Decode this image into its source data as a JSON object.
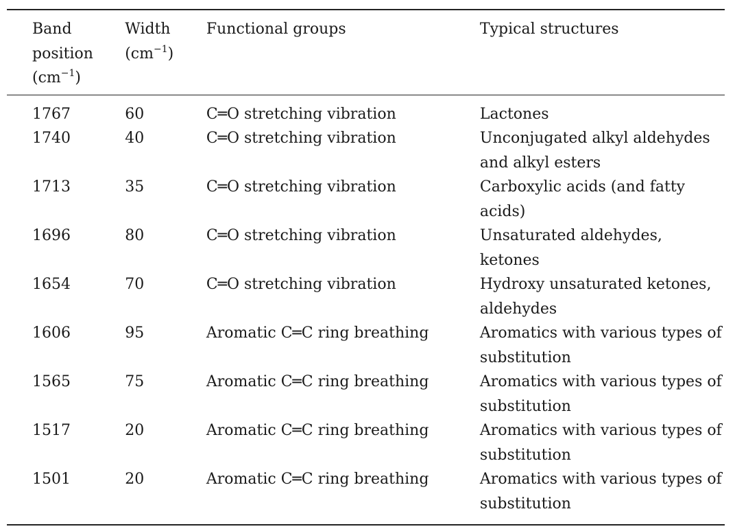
{
  "table": {
    "columns": [
      {
        "label": "Band position (cm",
        "sup": "−1",
        "close": ")"
      },
      {
        "label": "Width (cm",
        "sup": "−1",
        "close": ")"
      },
      {
        "label": "Functional groups"
      },
      {
        "label": "Typical structures"
      }
    ],
    "rows": [
      [
        1767,
        60,
        "C═O stretching vibration",
        "Lactones"
      ],
      [
        1740,
        40,
        "C═O stretching vibration",
        "Unconjugated alkyl aldehydes and alkyl esters"
      ],
      [
        1713,
        35,
        "C═O stretching vibration",
        "Carboxylic acids (and fatty acids)"
      ],
      [
        1696,
        80,
        "C═O stretching vibration",
        "Unsaturated aldehydes, ketones"
      ],
      [
        1654,
        70,
        "C═O stretching vibration",
        "Hydroxy unsaturated ketones, aldehydes"
      ],
      [
        1606,
        95,
        "Aromatic C═C ring breathing",
        "Aromatics with various types of substitution"
      ],
      [
        1565,
        75,
        "Aromatic C═C ring breathing",
        "Aromatics with various types of substitution"
      ],
      [
        1517,
        20,
        "Aromatic C═C ring breathing",
        "Aromatics with various types of substitution"
      ],
      [
        1501,
        20,
        "Aromatic C═C ring breathing",
        "Aromatics with various types of substitution"
      ]
    ]
  }
}
